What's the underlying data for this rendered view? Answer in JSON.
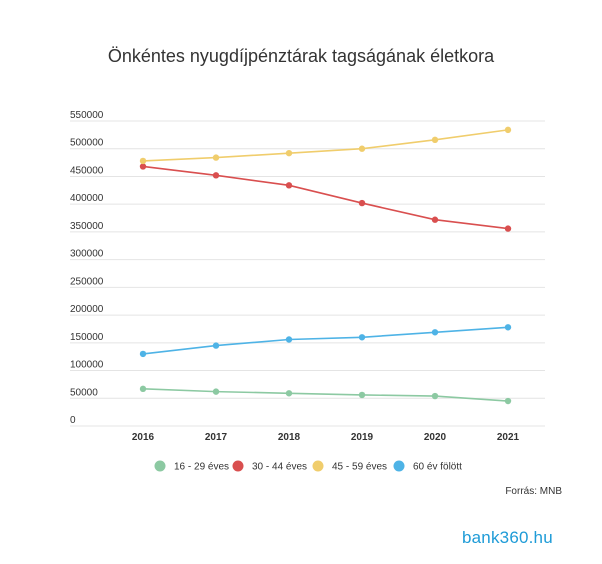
{
  "chart_data": {
    "type": "line",
    "title": "Önkéntes nyugdíjpénztárak tagságának életkora",
    "categories": [
      "2016",
      "2017",
      "2018",
      "2019",
      "2020",
      "2021"
    ],
    "y_ticks": [
      "550000",
      "500000",
      "450000",
      "400000",
      "350000",
      "300000",
      "250000",
      "200000",
      "150000",
      "100000",
      "50000",
      "0"
    ],
    "ylim": [
      0,
      550000
    ],
    "grid": true,
    "legend_position": "bottom",
    "series": [
      {
        "name": "16 - 29 éves",
        "color": "#8cc9a2",
        "values": [
          67000,
          62000,
          59000,
          56000,
          54000,
          45000
        ]
      },
      {
        "name": "30 - 44 éves",
        "color": "#d94f4f",
        "values": [
          468000,
          452000,
          434000,
          402000,
          372000,
          356000
        ]
      },
      {
        "name": "45 - 59 éves",
        "color": "#f0cd6c",
        "values": [
          478000,
          484000,
          492000,
          500000,
          516000,
          534000
        ]
      },
      {
        "name": "60 év fölött",
        "color": "#4eb3e6",
        "values": [
          130000,
          145000,
          156000,
          160000,
          169000,
          178000
        ]
      }
    ],
    "source": "Forrás: MNB"
  },
  "logo_text": "bank360.hu"
}
